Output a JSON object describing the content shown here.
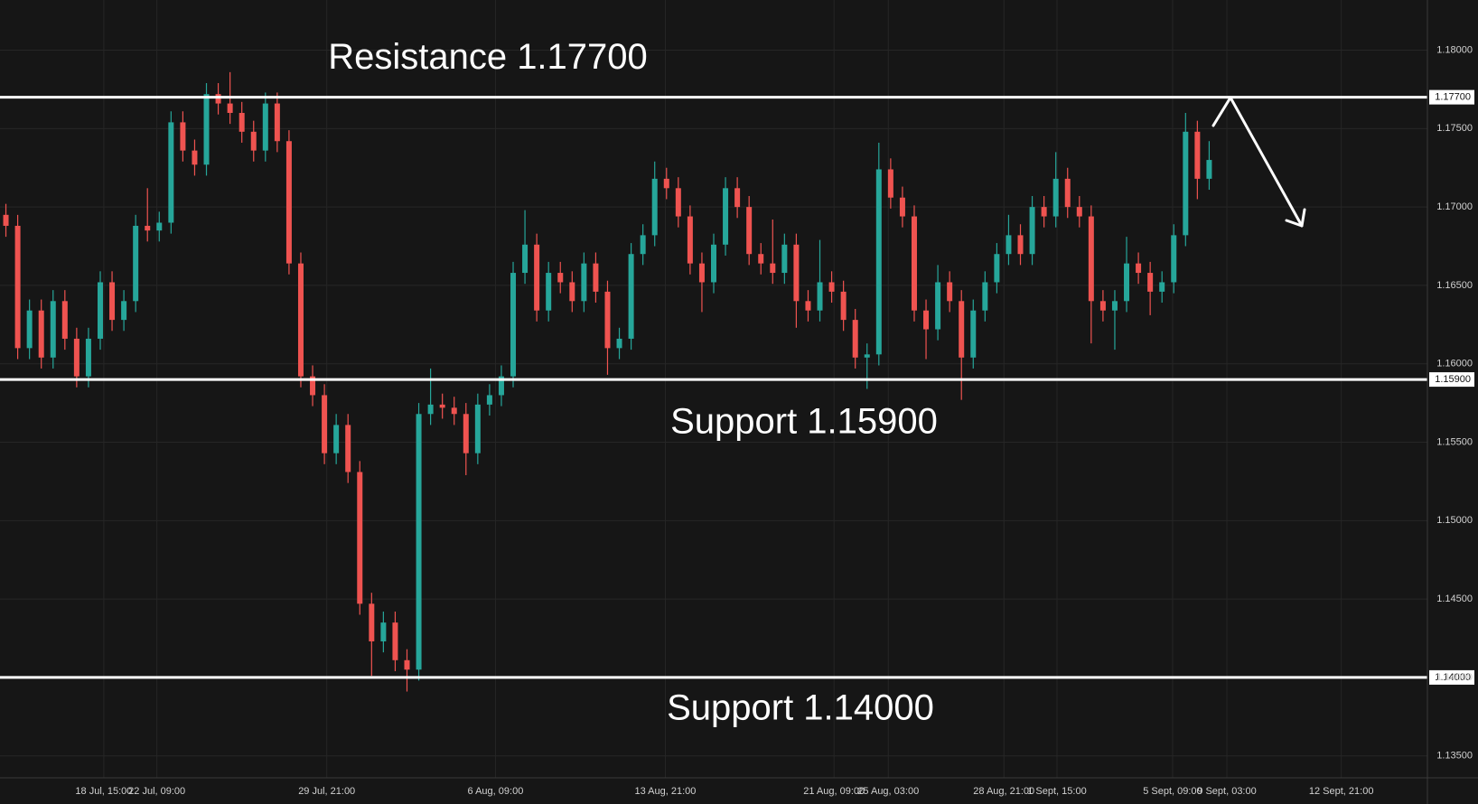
{
  "chart_data": {
    "type": "candlestick",
    "xlim": [
      0,
      121
    ],
    "xticks": [
      {
        "value": 8.8,
        "label": "18 Jul, 15:00"
      },
      {
        "value": 13.3,
        "label": "22 Jul, 09:00"
      },
      {
        "value": 27.7,
        "label": "29 Jul, 21:00"
      },
      {
        "value": 42,
        "label": "6 Aug, 09:00"
      },
      {
        "value": 56.4,
        "label": "13 Aug, 21:00"
      },
      {
        "value": 70.7,
        "label": "21 Aug, 09:00"
      },
      {
        "value": 75.3,
        "label": "25 Aug, 03:00"
      },
      {
        "value": 85.1,
        "label": "28 Aug, 21:00"
      },
      {
        "value": 89.6,
        "label": "1 Sept, 15:00"
      },
      {
        "value": 99.4,
        "label": "5 Sept, 09:00"
      },
      {
        "value": 104,
        "label": "9 Sept, 03:00"
      },
      {
        "value": 113.7,
        "label": "12 Sept, 21:00"
      }
    ],
    "ylim": [
      1.1336,
      1.1832
    ],
    "yticks": [
      {
        "value": 1.135,
        "label": "1.13500"
      },
      {
        "value": 1.14,
        "label": "1.14000"
      },
      {
        "value": 1.145,
        "label": "1.14500"
      },
      {
        "value": 1.15,
        "label": "1.15000"
      },
      {
        "value": 1.155,
        "label": "1.15500"
      },
      {
        "value": 1.16,
        "label": "1.16000"
      },
      {
        "value": 1.165,
        "label": "1.16500"
      },
      {
        "value": 1.17,
        "label": "1.17000"
      },
      {
        "value": 1.175,
        "label": "1.17500"
      },
      {
        "value": 1.18,
        "label": "1.18000"
      }
    ],
    "grid": true,
    "up_color": "#26a69a",
    "down_color": "#ef5350",
    "levels": [
      {
        "value": 1.177,
        "label": "1.17700",
        "annotation": "Resistance 1.17700"
      },
      {
        "value": 1.159,
        "label": "1.15900",
        "annotation": "Support 1.15900"
      },
      {
        "value": 1.14,
        "label": "1.14000",
        "annotation": "Support 1.14000"
      }
    ],
    "open": [
      1.1695,
      1.1688,
      1.161,
      1.1634,
      1.1604,
      1.164,
      1.1616,
      1.1592,
      1.1616,
      1.1652,
      1.1628,
      1.164,
      1.1688,
      1.1685,
      1.169,
      1.1754,
      1.1736,
      1.1727,
      1.1772,
      1.1766,
      1.176,
      1.1748,
      1.1736,
      1.1766,
      1.1742,
      1.1664,
      1.1592,
      1.158,
      1.1543,
      1.1561,
      1.1531,
      1.1447,
      1.1423,
      1.1435,
      1.1411,
      1.1405,
      1.1568,
      1.1574,
      1.1572,
      1.1568,
      1.1543,
      1.1574,
      1.158,
      1.1592,
      1.1658,
      1.1676,
      1.1634,
      1.1658,
      1.1652,
      1.164,
      1.1664,
      1.1646,
      1.161,
      1.1616,
      1.167,
      1.1682,
      1.1718,
      1.1712,
      1.1694,
      1.1664,
      1.1652,
      1.1676,
      1.1712,
      1.17,
      1.167,
      1.1664,
      1.1658,
      1.1676,
      1.164,
      1.1634,
      1.1652,
      1.1646,
      1.1628,
      1.1604,
      1.1606,
      1.1724,
      1.1706,
      1.1694,
      1.1634,
      1.1622,
      1.1652,
      1.164,
      1.1604,
      1.1634,
      1.1652,
      1.167,
      1.1682,
      1.167,
      1.17,
      1.1694,
      1.1718,
      1.17,
      1.1694,
      1.164,
      1.1634,
      1.164,
      1.1664,
      1.1658,
      1.1646,
      1.1652,
      1.1682,
      1.1748,
      1.1718
    ],
    "high": [
      1.1702,
      1.1695,
      1.1641,
      1.1641,
      1.1647,
      1.1647,
      1.1623,
      1.1623,
      1.1659,
      1.1659,
      1.1647,
      1.1695,
      1.1712,
      1.1697,
      1.1761,
      1.1761,
      1.1743,
      1.1779,
      1.1779,
      1.1786,
      1.1767,
      1.1755,
      1.1773,
      1.1773,
      1.1749,
      1.1671,
      1.1599,
      1.1587,
      1.1568,
      1.1568,
      1.1538,
      1.1454,
      1.1442,
      1.1442,
      1.1418,
      1.1575,
      1.1597,
      1.1581,
      1.1579,
      1.1575,
      1.1581,
      1.1587,
      1.1599,
      1.1665,
      1.1698,
      1.1683,
      1.1665,
      1.1665,
      1.1659,
      1.1671,
      1.1671,
      1.1653,
      1.1623,
      1.1677,
      1.1689,
      1.1729,
      1.1725,
      1.1719,
      1.1701,
      1.1671,
      1.1683,
      1.1719,
      1.1719,
      1.1707,
      1.1677,
      1.1692,
      1.1683,
      1.1683,
      1.1647,
      1.1679,
      1.1659,
      1.1653,
      1.1635,
      1.1613,
      1.1741,
      1.1731,
      1.1713,
      1.1701,
      1.1641,
      1.1663,
      1.1659,
      1.1647,
      1.1641,
      1.1659,
      1.1677,
      1.1695,
      1.1689,
      1.1707,
      1.1707,
      1.1735,
      1.1725,
      1.1707,
      1.1701,
      1.1647,
      1.1647,
      1.1681,
      1.1671,
      1.1665,
      1.1659,
      1.1689,
      1.176,
      1.1755,
      1.1742
    ],
    "low": [
      1.1681,
      1.1603,
      1.1603,
      1.1597,
      1.1597,
      1.1609,
      1.1585,
      1.1585,
      1.1609,
      1.1621,
      1.1621,
      1.1633,
      1.1678,
      1.1678,
      1.1683,
      1.1729,
      1.172,
      1.172,
      1.1759,
      1.1753,
      1.1741,
      1.1729,
      1.1729,
      1.1735,
      1.1657,
      1.1585,
      1.1573,
      1.1536,
      1.1536,
      1.1524,
      1.144,
      1.1401,
      1.1416,
      1.1404,
      1.1391,
      1.1398,
      1.1561,
      1.1565,
      1.1561,
      1.1529,
      1.1536,
      1.1567,
      1.1573,
      1.1585,
      1.1651,
      1.1627,
      1.1627,
      1.1645,
      1.1633,
      1.1633,
      1.1639,
      1.1593,
      1.1603,
      1.1609,
      1.1663,
      1.1675,
      1.1705,
      1.1687,
      1.1657,
      1.1633,
      1.1645,
      1.1669,
      1.1693,
      1.1663,
      1.1657,
      1.1651,
      1.1651,
      1.1623,
      1.1627,
      1.1627,
      1.1639,
      1.1621,
      1.1597,
      1.1584,
      1.1599,
      1.1699,
      1.1687,
      1.1627,
      1.1603,
      1.1615,
      1.1633,
      1.1577,
      1.1597,
      1.1627,
      1.1645,
      1.1663,
      1.1663,
      1.1663,
      1.1687,
      1.1687,
      1.1693,
      1.1687,
      1.1613,
      1.1627,
      1.1609,
      1.1633,
      1.1651,
      1.1631,
      1.1639,
      1.1645,
      1.1675,
      1.1705,
      1.1711
    ],
    "close": [
      1.1688,
      1.161,
      1.1634,
      1.1604,
      1.164,
      1.1616,
      1.1592,
      1.1616,
      1.1652,
      1.1628,
      1.164,
      1.1688,
      1.1685,
      1.169,
      1.1754,
      1.1736,
      1.1727,
      1.1772,
      1.1766,
      1.176,
      1.1748,
      1.1736,
      1.1766,
      1.1742,
      1.1664,
      1.1592,
      1.158,
      1.1543,
      1.1561,
      1.1531,
      1.1447,
      1.1423,
      1.1435,
      1.1411,
      1.1405,
      1.1568,
      1.1574,
      1.1572,
      1.1568,
      1.1543,
      1.1574,
      1.158,
      1.1592,
      1.1658,
      1.1676,
      1.1634,
      1.1658,
      1.1652,
      1.164,
      1.1664,
      1.1646,
      1.161,
      1.1616,
      1.167,
      1.1682,
      1.1718,
      1.1712,
      1.1694,
      1.1664,
      1.1652,
      1.1676,
      1.1712,
      1.17,
      1.167,
      1.1664,
      1.1658,
      1.1676,
      1.164,
      1.1634,
      1.1652,
      1.1646,
      1.1628,
      1.1604,
      1.1606,
      1.1724,
      1.1706,
      1.1694,
      1.1634,
      1.1622,
      1.1652,
      1.164,
      1.1604,
      1.1634,
      1.1652,
      1.167,
      1.1682,
      1.167,
      1.17,
      1.1694,
      1.1718,
      1.17,
      1.1694,
      1.164,
      1.1634,
      1.164,
      1.1664,
      1.1658,
      1.1646,
      1.1652,
      1.1682,
      1.1748,
      1.1718,
      1.173
    ]
  }
}
